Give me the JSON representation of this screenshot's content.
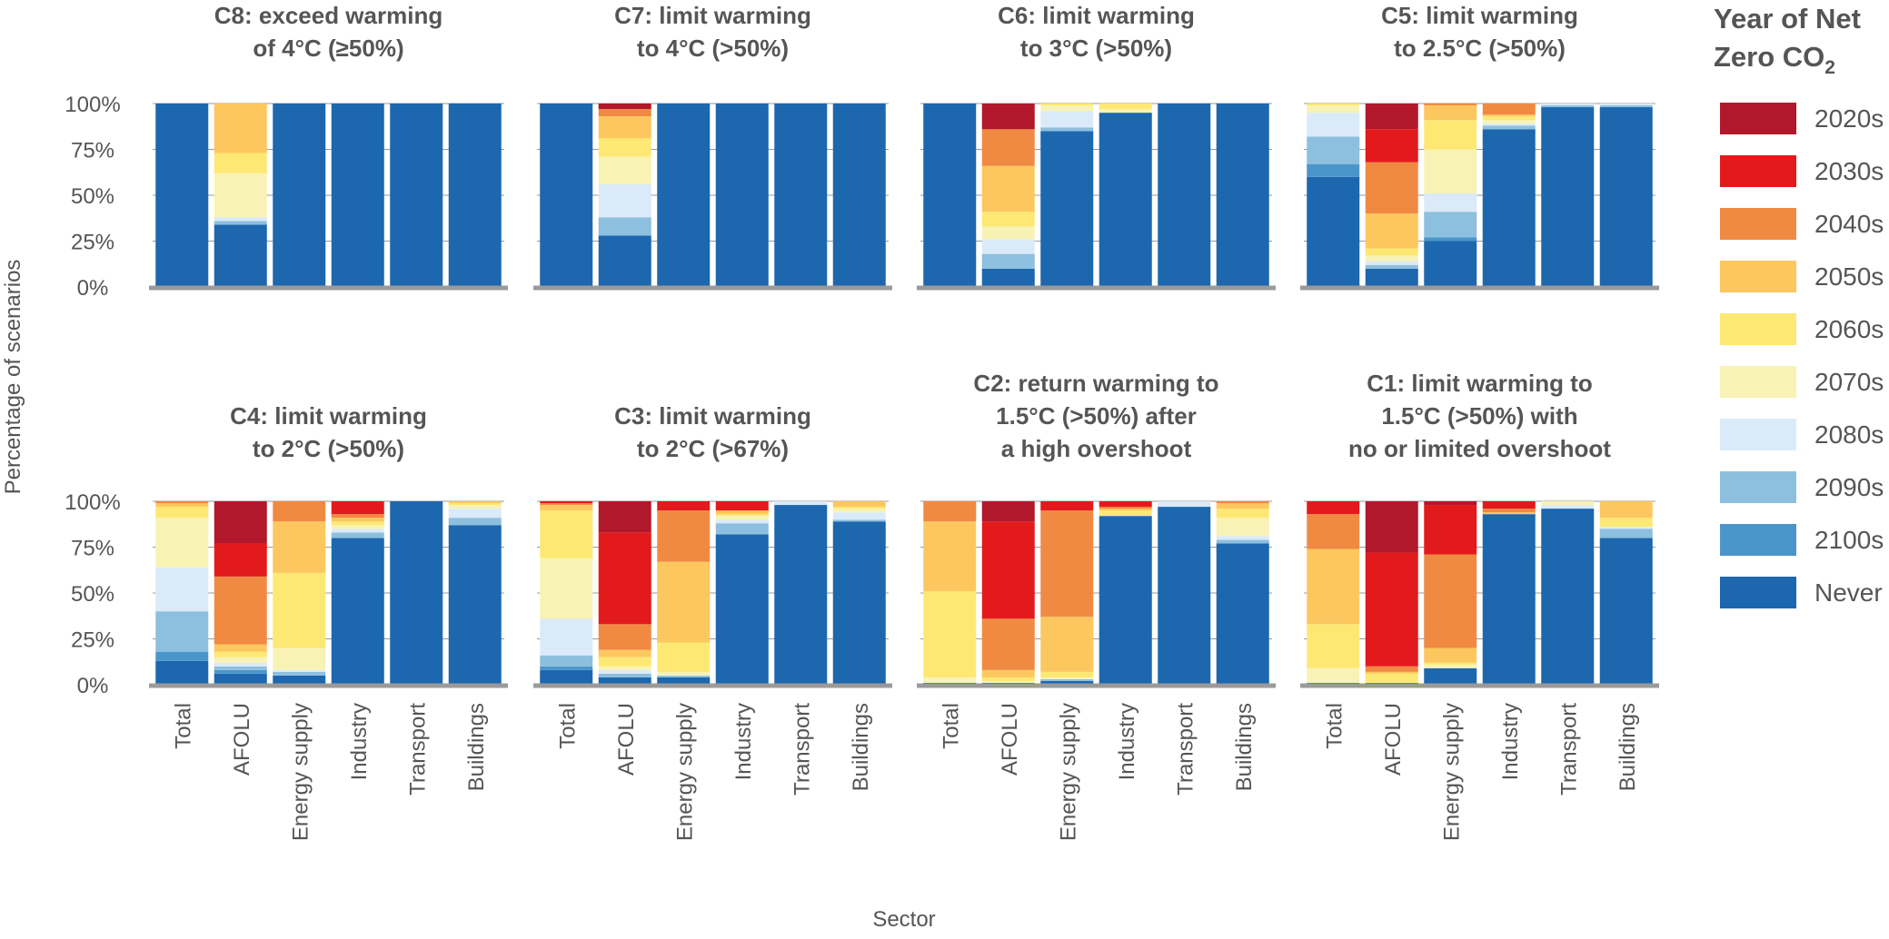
{
  "figure": {
    "ylabel": "Percentage of scenarios",
    "xlabel": "Sector",
    "legend_title_line1": "Year of Net",
    "legend_title_line2": "Zero CO",
    "legend_title_sub": "2"
  },
  "chart_data": {
    "type": "bar",
    "stacked": true,
    "ylim": [
      0,
      100
    ],
    "yticks": [
      "0%",
      "25%",
      "50%",
      "75%",
      "100%"
    ],
    "legend_position": "right",
    "categories": [
      "Total",
      "AFOLU",
      "Energy supply",
      "Industry",
      "Transport",
      "Buildings"
    ],
    "stack_order": [
      "Never",
      "2100s",
      "2090s",
      "2080s",
      "2070s",
      "2060s",
      "2050s",
      "2040s",
      "2030s",
      "2020s"
    ],
    "legend": [
      {
        "label": "2020s",
        "color": "#b2182b"
      },
      {
        "label": "2030s",
        "color": "#e31a1c"
      },
      {
        "label": "2040s",
        "color": "#f08a43"
      },
      {
        "label": "2050s",
        "color": "#fdc75f"
      },
      {
        "label": "2060s",
        "color": "#fde874"
      },
      {
        "label": "2070s",
        "color": "#f8f3b5"
      },
      {
        "label": "2080s",
        "color": "#dbeaf8"
      },
      {
        "label": "2090s",
        "color": "#8dbfde"
      },
      {
        "label": "2100s",
        "color": "#4a96cb"
      },
      {
        "label": "Never",
        "color": "#1d67ae"
      }
    ],
    "panels": [
      {
        "title_lines": [
          "C8: exceed warming",
          "of 4°C (≥50%)"
        ],
        "bars": [
          {
            "category": "Total",
            "segments": {
              "Never": 100
            }
          },
          {
            "category": "AFOLU",
            "segments": {
              "Never": 34,
              "2090s": 2,
              "2080s": 2,
              "2070s": 24,
              "2060s": 11,
              "2050s": 27
            }
          },
          {
            "category": "Energy supply",
            "segments": {
              "Never": 100
            }
          },
          {
            "category": "Industry",
            "segments": {
              "Never": 100
            }
          },
          {
            "category": "Transport",
            "segments": {
              "Never": 100
            }
          },
          {
            "category": "Buildings",
            "segments": {
              "Never": 100
            }
          }
        ]
      },
      {
        "title_lines": [
          "C7: limit warming",
          "to 4°C (>50%)"
        ],
        "bars": [
          {
            "category": "Total",
            "segments": {
              "Never": 100
            }
          },
          {
            "category": "AFOLU",
            "segments": {
              "Never": 28,
              "2090s": 10,
              "2080s": 18,
              "2070s": 15,
              "2060s": 10,
              "2050s": 12,
              "2040s": 4,
              "2020s": 3
            }
          },
          {
            "category": "Energy supply",
            "segments": {
              "Never": 100
            }
          },
          {
            "category": "Industry",
            "segments": {
              "Never": 100
            }
          },
          {
            "category": "Transport",
            "segments": {
              "Never": 100
            }
          },
          {
            "category": "Buildings",
            "segments": {
              "Never": 100
            }
          }
        ]
      },
      {
        "title_lines": [
          "C6: limit warming",
          "to 3°C (>50%)"
        ],
        "bars": [
          {
            "category": "Total",
            "segments": {
              "Never": 100
            }
          },
          {
            "category": "AFOLU",
            "segments": {
              "Never": 10,
              "2090s": 8,
              "2080s": 8,
              "2070s": 7,
              "2060s": 8,
              "2050s": 25,
              "2040s": 20,
              "2020s": 14
            }
          },
          {
            "category": "Energy supply",
            "segments": {
              "Never": 85,
              "2090s": 2,
              "2080s": 9,
              "2070s": 3,
              "2060s": 1
            }
          },
          {
            "category": "Industry",
            "segments": {
              "Never": 95,
              "2060s": 3,
              "2070s": 2
            }
          },
          {
            "category": "Transport",
            "segments": {
              "Never": 100
            }
          },
          {
            "category": "Buildings",
            "segments": {
              "Never": 100
            }
          }
        ]
      },
      {
        "title_lines": [
          "C5: limit warming",
          "to 2.5°C (>50%)"
        ],
        "bars": [
          {
            "category": "Total",
            "segments": {
              "Never": 60,
              "2100s": 7,
              "2090s": 15,
              "2080s": 13,
              "2070s": 4,
              "2060s": 1
            }
          },
          {
            "category": "AFOLU",
            "segments": {
              "Never": 10,
              "2090s": 2,
              "2080s": 2,
              "2070s": 3,
              "2060s": 4,
              "2050s": 19,
              "2040s": 28,
              "2030s": 18,
              "2020s": 14
            }
          },
          {
            "category": "Energy supply",
            "segments": {
              "Never": 25,
              "2100s": 2,
              "2090s": 14,
              "2080s": 10,
              "2070s": 24,
              "2060s": 16,
              "2050s": 8,
              "2040s": 1
            }
          },
          {
            "category": "Industry",
            "segments": {
              "Never": 86,
              "2090s": 2,
              "2080s": 1,
              "2070s": 2,
              "2060s": 2,
              "2050s": 1,
              "2040s": 6
            }
          },
          {
            "category": "Transport",
            "segments": {
              "Never": 98,
              "2090s": 1,
              "2080s": 1
            }
          },
          {
            "category": "Buildings",
            "segments": {
              "Never": 98,
              "2090s": 1,
              "2080s": 1
            }
          }
        ]
      },
      {
        "title_lines": [
          "C4: limit warming",
          "to 2°C (>50%)"
        ],
        "bars": [
          {
            "category": "Total",
            "segments": {
              "Never": 13,
              "2100s": 5,
              "2090s": 22,
              "2080s": 24,
              "2070s": 27,
              "2060s": 6,
              "2050s": 2,
              "2040s": 1
            }
          },
          {
            "category": "AFOLU",
            "segments": {
              "Never": 6,
              "2100s": 2,
              "2090s": 2,
              "2080s": 2,
              "2070s": 3,
              "2060s": 3,
              "2050s": 4,
              "2040s": 37,
              "2030s": 18,
              "2020s": 23
            }
          },
          {
            "category": "Energy supply",
            "segments": {
              "Never": 5,
              "2090s": 2,
              "2080s": 1,
              "2070s": 12,
              "2060s": 41,
              "2050s": 28,
              "2040s": 11
            }
          },
          {
            "category": "Industry",
            "segments": {
              "Never": 80,
              "2090s": 3,
              "2080s": 2,
              "2070s": 2,
              "2060s": 2,
              "2050s": 2,
              "2040s": 2,
              "2030s": 7
            }
          },
          {
            "category": "Transport",
            "segments": {
              "Never": 100
            }
          },
          {
            "category": "Buildings",
            "segments": {
              "Never": 87,
              "2090s": 4,
              "2080s": 5,
              "2070s": 2,
              "2060s": 1,
              "2050s": 1
            }
          }
        ]
      },
      {
        "title_lines": [
          "C3: limit warming",
          "to 2°C (>67%)"
        ],
        "bars": [
          {
            "category": "Total",
            "segments": {
              "Never": 8,
              "2100s": 2,
              "2090s": 6,
              "2080s": 20,
              "2070s": 33,
              "2060s": 26,
              "2050s": 3,
              "2040s": 1,
              "2030s": 1
            }
          },
          {
            "category": "AFOLU",
            "segments": {
              "Never": 4,
              "2090s": 2,
              "2080s": 2,
              "2070s": 2,
              "2060s": 5,
              "2050s": 4,
              "2040s": 14,
              "2030s": 50,
              "2020s": 17
            }
          },
          {
            "category": "Energy supply",
            "segments": {
              "Never": 4,
              "2090s": 1,
              "2070s": 2,
              "2060s": 16,
              "2050s": 44,
              "2040s": 28,
              "2030s": 5
            }
          },
          {
            "category": "Industry",
            "segments": {
              "Never": 82,
              "2090s": 6,
              "2080s": 2,
              "2070s": 2,
              "2060s": 1,
              "2050s": 2,
              "2030s": 5
            }
          },
          {
            "category": "Transport",
            "segments": {
              "Never": 98,
              "2080s": 2
            }
          },
          {
            "category": "Buildings",
            "segments": {
              "Never": 89,
              "2090s": 1,
              "2080s": 4,
              "2070s": 2,
              "2060s": 1,
              "2050s": 3
            }
          }
        ]
      },
      {
        "title_lines": [
          "C2: return warming to",
          "1.5°C (>50%) after",
          "a high overshoot"
        ],
        "bars": [
          {
            "category": "Total",
            "segments": {
              "Never": 1,
              "2070s": 3,
              "2060s": 47,
              "2050s": 38,
              "2040s": 11
            }
          },
          {
            "category": "AFOLU",
            "segments": {
              "Never": 1,
              "2070s": 1,
              "2060s": 2,
              "2050s": 4,
              "2040s": 28,
              "2030s": 53,
              "2020s": 11
            }
          },
          {
            "category": "Energy supply",
            "segments": {
              "Never": 2,
              "2090s": 1,
              "2070s": 1,
              "2060s": 3,
              "2050s": 30,
              "2040s": 58,
              "2030s": 5
            }
          },
          {
            "category": "Industry",
            "segments": {
              "Never": 92,
              "2060s": 3,
              "2050s": 1,
              "2040s": 1,
              "2030s": 3
            }
          },
          {
            "category": "Transport",
            "segments": {
              "Never": 97,
              "2080s": 3
            }
          },
          {
            "category": "Buildings",
            "segments": {
              "Never": 77,
              "2090s": 2,
              "2080s": 2,
              "2070s": 10,
              "2060s": 5,
              "2050s": 3,
              "2040s": 1
            }
          }
        ]
      },
      {
        "title_lines": [
          "C1: limit warming to",
          "1.5°C (>50%) with",
          "no or limited overshoot"
        ],
        "bars": [
          {
            "category": "Total",
            "segments": {
              "Never": 1,
              "2070s": 8,
              "2060s": 24,
              "2050s": 41,
              "2040s": 19,
              "2030s": 7
            }
          },
          {
            "category": "AFOLU",
            "segments": {
              "Never": 1,
              "2060s": 5,
              "2050s": 1,
              "2040s": 3,
              "2030s": 62,
              "2020s": 28
            }
          },
          {
            "category": "Energy supply",
            "segments": {
              "Never": 9,
              "2070s": 2,
              "2060s": 1,
              "2050s": 8,
              "2040s": 51,
              "2030s": 27,
              "2020s": 2
            }
          },
          {
            "category": "Industry",
            "segments": {
              "Never": 93,
              "2050s": 1,
              "2040s": 2,
              "2030s": 4
            }
          },
          {
            "category": "Transport",
            "segments": {
              "Never": 96,
              "2080s": 2,
              "2070s": 2
            }
          },
          {
            "category": "Buildings",
            "segments": {
              "Never": 80,
              "2090s": 5,
              "2080s": 1,
              "2060s": 5,
              "2050s": 9
            }
          }
        ]
      }
    ]
  }
}
